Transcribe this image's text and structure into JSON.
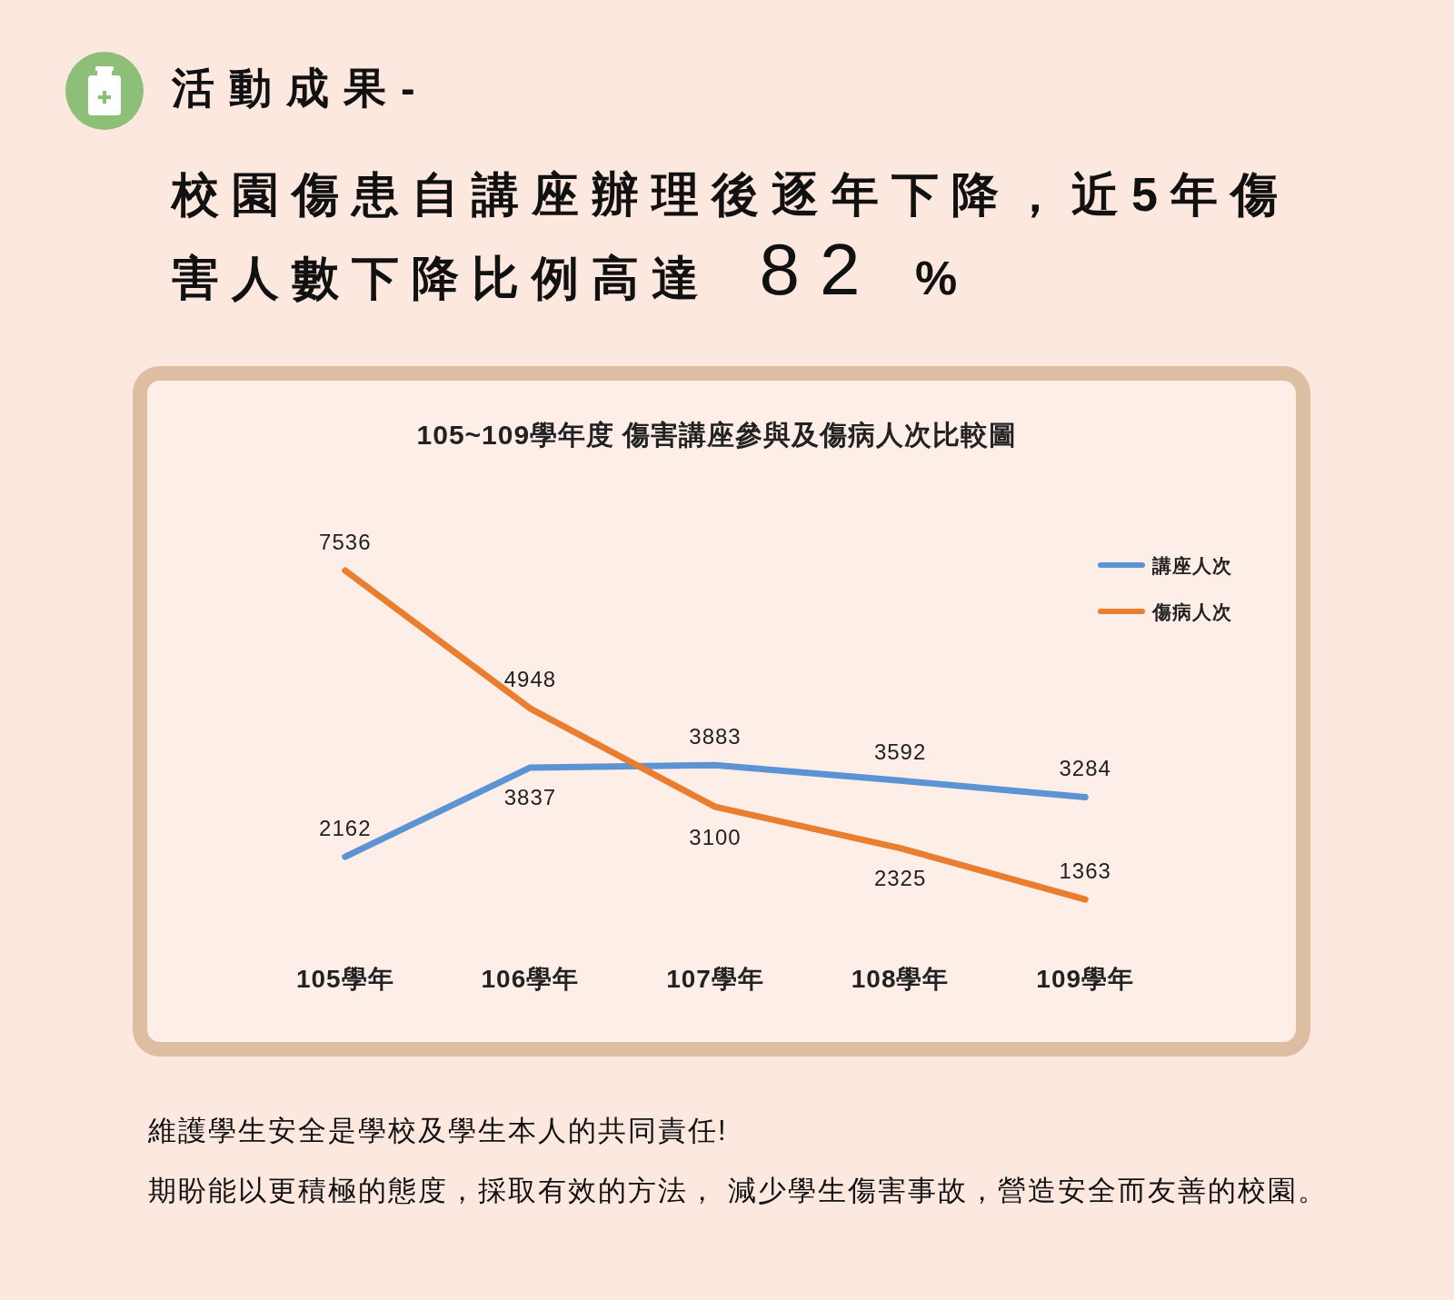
{
  "chart_data": {
    "type": "line",
    "title": "105~109學年度 傷害講座參與及傷病人次比較圖",
    "categories": [
      "105學年",
      "106學年",
      "107學年",
      "108學年",
      "109學年"
    ],
    "series": [
      {
        "name": "講座人次",
        "color": "#5b93d3",
        "values": [
          2162,
          3837,
          3883,
          3592,
          3284
        ]
      },
      {
        "name": "傷病人次",
        "color": "#e97d30",
        "values": [
          7536,
          4948,
          3100,
          2325,
          1363
        ]
      }
    ],
    "data_labels": true,
    "legend": "top right",
    "annotations": [
      "活動成果-",
      "校園傷患自講座辦理後逐年下降，近5年傷害人數下降比例高達 **82** %",
      "維護學生安全是學校及學生本人的共同責任!",
      "期盼能以更積極的態度，採取有效的方法， 減少學生傷害事故，營造安全而友善的校園。"
    ]
  }
}
